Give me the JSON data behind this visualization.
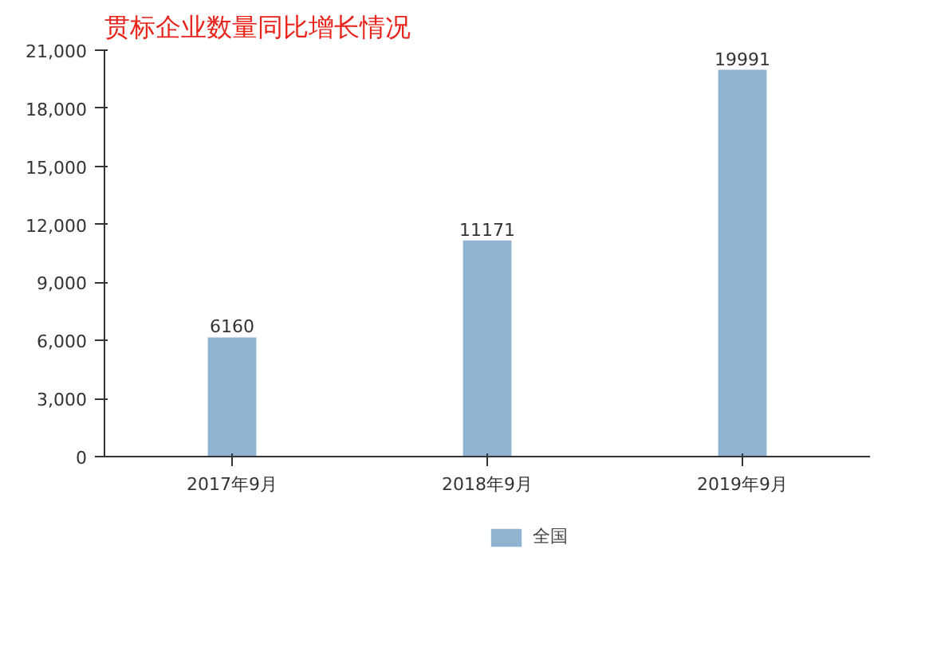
{
  "chart_data": {
    "type": "bar",
    "title": "贯标企业数量同比增长情况",
    "categories": [
      "2017年9月",
      "2018年9月",
      "2019年9月"
    ],
    "series": [
      {
        "name": "全国",
        "color": "#8fb3d1",
        "values": [
          6160,
          11171,
          19991
        ]
      }
    ],
    "ylim": [
      0,
      21000
    ],
    "yticks": [
      0,
      {
        "value": 3000,
        "label": "3,000"
      },
      {
        "value": 6000,
        "label": "6,000"
      },
      {
        "value": 9000,
        "label": "9,000"
      },
      {
        "value": 12000,
        "label": "12,000"
      },
      {
        "value": 15000,
        "label": "15,000"
      },
      {
        "value": 18000,
        "label": "18,000"
      },
      {
        "value": 21000,
        "label": "21,000"
      }
    ],
    "data_labels": true,
    "grid": false,
    "legend": "bottom"
  }
}
